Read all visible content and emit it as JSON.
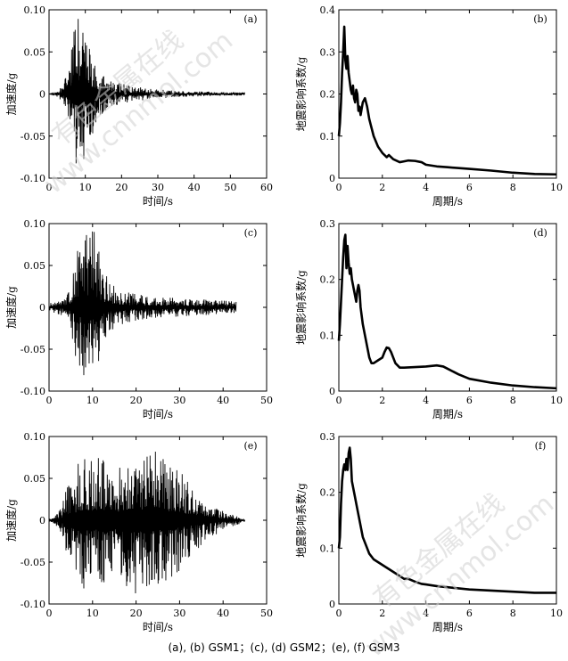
{
  "caption": "(a), (b) GSM1；(c), (d) GSM2；(e), (f) GSM3",
  "watermark": [
    "有色金属在线",
    "www.cnnmol.com"
  ],
  "chart_data": [
    {
      "id": "a",
      "type": "line",
      "tag": "(a)",
      "xlabel": "时间/s",
      "ylabel": "加速度/g",
      "xlim": [
        0,
        60
      ],
      "ylim": [
        -0.1,
        0.1
      ],
      "xticks": [
        0,
        10,
        20,
        30,
        40,
        50,
        60
      ],
      "xtick_labels": [
        "0",
        "10",
        "20",
        "30",
        "40",
        "50",
        "60"
      ],
      "yticks": [
        -0.1,
        -0.05,
        0,
        0.05,
        0.1
      ],
      "ytick_labels": [
        "-0.10",
        "-0.05",
        "0",
        "0.05",
        "0.10"
      ],
      "x": [
        0,
        2,
        4,
        5,
        6,
        7,
        8,
        8.5,
        9,
        9.5,
        10,
        11,
        12,
        13,
        14,
        16,
        18,
        20,
        22,
        25,
        28,
        31,
        34,
        37,
        40,
        43,
        46,
        49,
        52,
        54
      ],
      "y": [
        0.0,
        0.003,
        0.01,
        0.03,
        0.055,
        0.08,
        0.092,
        0.098,
        0.095,
        0.09,
        0.08,
        0.06,
        0.048,
        0.035,
        0.026,
        0.02,
        0.016,
        0.013,
        0.01,
        0.008,
        0.006,
        0.005,
        0.004,
        0.0035,
        0.003,
        0.003,
        0.0025,
        0.002,
        0.002,
        0.0015
      ]
    },
    {
      "id": "b",
      "type": "line",
      "tag": "(b)",
      "xlabel": "周期/s",
      "ylabel": "地震影响系数/g",
      "xlim": [
        0,
        10
      ],
      "ylim": [
        0,
        0.4
      ],
      "xticks": [
        0,
        2,
        4,
        6,
        8,
        10
      ],
      "xtick_labels": [
        "0",
        "2",
        "4",
        "6",
        "8",
        "10"
      ],
      "yticks": [
        0,
        0.1,
        0.2,
        0.3,
        0.4
      ],
      "ytick_labels": [
        "0",
        "0.1",
        "0.2",
        "0.3",
        "0.4"
      ],
      "x": [
        0,
        0.05,
        0.1,
        0.15,
        0.2,
        0.25,
        0.3,
        0.35,
        0.4,
        0.45,
        0.5,
        0.55,
        0.6,
        0.65,
        0.7,
        0.75,
        0.8,
        0.85,
        0.9,
        0.95,
        1.0,
        1.1,
        1.2,
        1.3,
        1.4,
        1.5,
        1.6,
        1.8,
        2.0,
        2.2,
        2.3,
        2.5,
        2.8,
        3.0,
        3.2,
        3.5,
        3.8,
        4.0,
        4.5,
        5.0,
        6.0,
        7.0,
        8.0,
        9.0,
        10.0
      ],
      "y": [
        0.1,
        0.13,
        0.18,
        0.25,
        0.3,
        0.36,
        0.28,
        0.26,
        0.29,
        0.25,
        0.23,
        0.21,
        0.2,
        0.22,
        0.19,
        0.18,
        0.21,
        0.2,
        0.16,
        0.17,
        0.15,
        0.18,
        0.19,
        0.17,
        0.14,
        0.12,
        0.1,
        0.075,
        0.06,
        0.05,
        0.055,
        0.045,
        0.038,
        0.04,
        0.042,
        0.041,
        0.038,
        0.032,
        0.028,
        0.026,
        0.022,
        0.018,
        0.013,
        0.01,
        0.009
      ]
    },
    {
      "id": "c",
      "type": "line",
      "tag": "(c)",
      "xlabel": "时间/s",
      "ylabel": "加速度/g",
      "xlim": [
        0,
        50
      ],
      "ylim": [
        -0.1,
        0.1
      ],
      "xticks": [
        0,
        10,
        20,
        30,
        40,
        50
      ],
      "xtick_labels": [
        "0",
        "10",
        "20",
        "30",
        "40",
        "50"
      ],
      "yticks": [
        -0.1,
        -0.05,
        0,
        0.05,
        0.1
      ],
      "ytick_labels": [
        "-0.10",
        "-0.05",
        "0",
        "0.05",
        "0.10"
      ],
      "x": [
        0,
        2,
        3,
        4,
        5,
        6,
        7,
        8,
        9,
        10,
        11,
        12,
        13,
        14,
        16,
        18,
        20,
        22,
        25,
        28,
        31,
        34,
        37,
        40,
        43
      ],
      "y": [
        0.006,
        0.008,
        0.01,
        0.012,
        0.03,
        0.06,
        0.075,
        0.085,
        0.09,
        0.098,
        0.08,
        0.055,
        0.04,
        0.03,
        0.022,
        0.018,
        0.016,
        0.014,
        0.013,
        0.012,
        0.011,
        0.01,
        0.009,
        0.008,
        0.007
      ]
    },
    {
      "id": "d",
      "type": "line",
      "tag": "(d)",
      "xlabel": "周期/s",
      "ylabel": "地震影响系数/g",
      "xlim": [
        0,
        10
      ],
      "ylim": [
        0,
        0.3
      ],
      "xticks": [
        0,
        2,
        4,
        6,
        8,
        10
      ],
      "xtick_labels": [
        "0",
        "2",
        "4",
        "6",
        "8",
        "10"
      ],
      "yticks": [
        0,
        0.1,
        0.2,
        0.3
      ],
      "ytick_labels": [
        "0",
        "0.1",
        "0.2",
        "0.3"
      ],
      "x": [
        0,
        0.05,
        0.1,
        0.15,
        0.2,
        0.25,
        0.3,
        0.35,
        0.4,
        0.45,
        0.5,
        0.55,
        0.6,
        0.65,
        0.7,
        0.75,
        0.8,
        0.85,
        0.9,
        0.95,
        1.0,
        1.1,
        1.2,
        1.3,
        1.4,
        1.5,
        1.6,
        1.8,
        2.0,
        2.1,
        2.2,
        2.3,
        2.4,
        2.6,
        2.8,
        3.0,
        3.5,
        4.0,
        4.5,
        4.8,
        5.0,
        5.5,
        6.0,
        7.0,
        8.0,
        9.0,
        10.0
      ],
      "y": [
        0.09,
        0.12,
        0.16,
        0.2,
        0.24,
        0.27,
        0.28,
        0.22,
        0.26,
        0.23,
        0.21,
        0.22,
        0.2,
        0.19,
        0.18,
        0.17,
        0.16,
        0.18,
        0.19,
        0.18,
        0.15,
        0.12,
        0.1,
        0.08,
        0.06,
        0.05,
        0.05,
        0.055,
        0.06,
        0.07,
        0.078,
        0.077,
        0.07,
        0.05,
        0.042,
        0.042,
        0.043,
        0.044,
        0.046,
        0.044,
        0.04,
        0.03,
        0.022,
        0.015,
        0.01,
        0.007,
        0.005
      ]
    },
    {
      "id": "e",
      "type": "line",
      "tag": "(e)",
      "xlabel": "时间/s",
      "ylabel": "加速度/g",
      "xlim": [
        0,
        50
      ],
      "ylim": [
        -0.1,
        0.1
      ],
      "xticks": [
        0,
        10,
        20,
        30,
        40,
        50
      ],
      "xtick_labels": [
        "0",
        "10",
        "20",
        "30",
        "40",
        "50"
      ],
      "yticks": [
        -0.1,
        -0.05,
        0,
        0.05,
        0.1
      ],
      "ytick_labels": [
        "-0.10",
        "-0.05",
        "0",
        "0.05",
        "0.10"
      ],
      "x": [
        0,
        1,
        2,
        3,
        4,
        6,
        8,
        10,
        12,
        14,
        16,
        18,
        20,
        22,
        24,
        26,
        28,
        30,
        32,
        34,
        36,
        38,
        40,
        42,
        44,
        45
      ],
      "y": [
        0.0,
        0.005,
        0.01,
        0.02,
        0.04,
        0.06,
        0.085,
        0.07,
        0.08,
        0.075,
        0.07,
        0.085,
        0.095,
        0.08,
        0.085,
        0.075,
        0.07,
        0.06,
        0.045,
        0.035,
        0.025,
        0.018,
        0.012,
        0.008,
        0.004,
        0.002
      ]
    },
    {
      "id": "f",
      "type": "line",
      "tag": "(f)",
      "xlabel": "周期/s",
      "ylabel": "地震影响系数/g",
      "xlim": [
        0,
        10
      ],
      "ylim": [
        0,
        0.3
      ],
      "xticks": [
        0,
        2,
        4,
        6,
        8,
        10
      ],
      "xtick_labels": [
        "0",
        "2",
        "4",
        "6",
        "8",
        "10"
      ],
      "yticks": [
        0,
        0.1,
        0.2,
        0.3
      ],
      "ytick_labels": [
        "0",
        "0.1",
        "0.2",
        "0.3"
      ],
      "x": [
        0,
        0.05,
        0.1,
        0.15,
        0.2,
        0.25,
        0.3,
        0.35,
        0.4,
        0.45,
        0.5,
        0.55,
        0.6,
        0.65,
        0.7,
        0.75,
        0.8,
        0.9,
        1.0,
        1.1,
        1.2,
        1.3,
        1.4,
        1.5,
        1.6,
        1.8,
        2.0,
        2.2,
        2.4,
        2.6,
        2.8,
        3.0,
        3.2,
        3.5,
        3.8,
        4.0,
        4.5,
        5.0,
        6.0,
        7.0,
        8.0,
        9.0,
        10.0
      ],
      "y": [
        0.1,
        0.12,
        0.18,
        0.22,
        0.24,
        0.25,
        0.24,
        0.26,
        0.24,
        0.27,
        0.28,
        0.26,
        0.22,
        0.21,
        0.2,
        0.19,
        0.18,
        0.16,
        0.14,
        0.12,
        0.11,
        0.1,
        0.09,
        0.085,
        0.08,
        0.075,
        0.07,
        0.065,
        0.06,
        0.055,
        0.05,
        0.045,
        0.045,
        0.04,
        0.036,
        0.035,
        0.032,
        0.03,
        0.026,
        0.024,
        0.022,
        0.02,
        0.02
      ]
    }
  ]
}
